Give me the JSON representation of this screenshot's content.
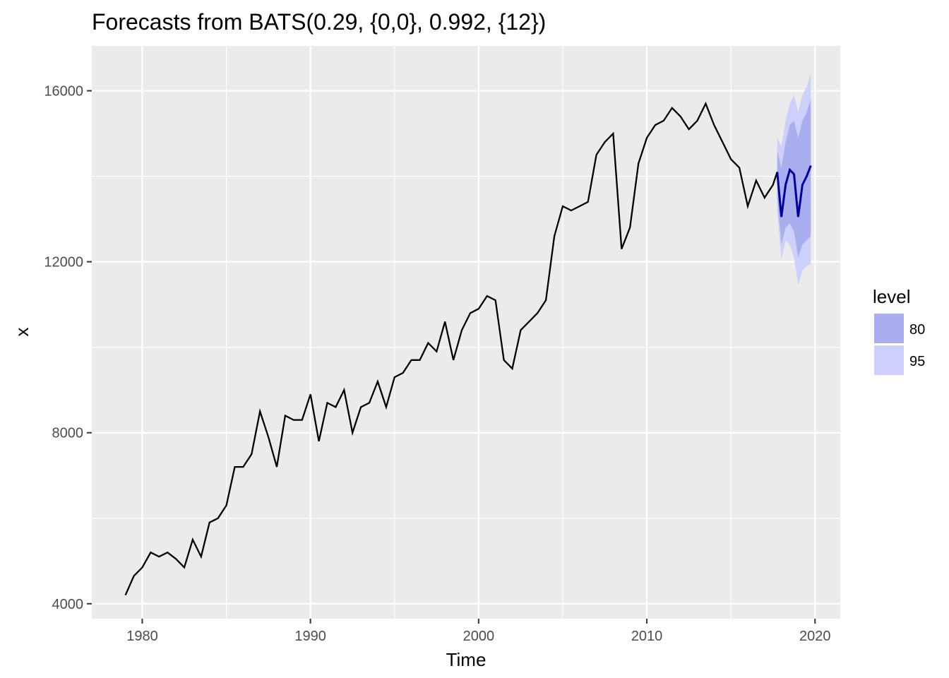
{
  "chart_data": {
    "type": "line",
    "title": "Forecasts from BATS(0.29, {0,0}, 0.992, {12})",
    "xlabel": "Time",
    "ylabel": "x",
    "xlim": [
      1977,
      2021.5
    ],
    "ylim": [
      3650,
      17050
    ],
    "x_ticks": [
      1980,
      1990,
      2000,
      2010,
      2020
    ],
    "y_ticks": [
      4000,
      8000,
      12000,
      16000
    ],
    "grid": true,
    "legend": {
      "title": "level",
      "placement": "right",
      "entries": [
        {
          "label": "80",
          "color": "#aaaeee"
        },
        {
          "label": "95",
          "color": "#ccd0fa"
        }
      ]
    },
    "colors": {
      "panel": "#ebebeb",
      "grid": "#ffffff",
      "history": "#000000",
      "forecast": "#00009e",
      "band80": "#aaaeee",
      "band95": "#ccd0fa"
    },
    "history": {
      "x": [
        1979.0,
        1979.5,
        1980.0,
        1980.5,
        1981.0,
        1981.5,
        1982.0,
        1982.5,
        1983.0,
        1983.5,
        1984.0,
        1984.5,
        1985.0,
        1985.5,
        1986.0,
        1986.5,
        1987.0,
        1987.5,
        1988.0,
        1988.5,
        1989.0,
        1989.5,
        1990.0,
        1990.5,
        1991.0,
        1991.5,
        1992.0,
        1992.5,
        1993.0,
        1993.5,
        1994.0,
        1994.5,
        1995.0,
        1995.5,
        1996.0,
        1996.5,
        1997.0,
        1997.5,
        1998.0,
        1998.5,
        1999.0,
        1999.5,
        2000.0,
        2000.5,
        2001.0,
        2001.5,
        2002.0,
        2002.5,
        2003.0,
        2003.5,
        2004.0,
        2004.5,
        2005.0,
        2005.5,
        2006.0,
        2006.5,
        2007.0,
        2007.5,
        2008.0,
        2008.5,
        2009.0,
        2009.5,
        2010.0,
        2010.5,
        2011.0,
        2011.5,
        2012.0,
        2012.5,
        2013.0,
        2013.5,
        2014.0,
        2014.5,
        2015.0,
        2015.5,
        2016.0,
        2016.5,
        2017.0,
        2017.5,
        2017.75
      ],
      "y": [
        4200,
        4650,
        4850,
        5200,
        5100,
        5200,
        5050,
        4850,
        5500,
        5100,
        5900,
        6000,
        6300,
        7200,
        7200,
        7500,
        8500,
        7900,
        7200,
        8400,
        8300,
        8300,
        8900,
        7800,
        8700,
        8600,
        9000,
        8000,
        8600,
        8700,
        9200,
        8600,
        9300,
        9400,
        9700,
        9700,
        10100,
        9900,
        10600,
        9700,
        10400,
        10800,
        10900,
        11200,
        11100,
        9700,
        9500,
        10400,
        10600,
        10800,
        11100,
        12600,
        13300,
        13200,
        13300,
        13400,
        14500,
        14800,
        15000,
        12300,
        12800,
        14300,
        14900,
        15200,
        15300,
        15600,
        15400,
        15100,
        15300,
        15700,
        15200,
        14800,
        14400,
        14200,
        13300,
        13900,
        13500,
        13800,
        14100
      ]
    },
    "forecast": {
      "x": [
        2017.75,
        2018.0,
        2018.25,
        2018.5,
        2018.75,
        2019.0,
        2019.25,
        2019.5,
        2019.75
      ],
      "y": [
        14100,
        13050,
        13800,
        14150,
        14050,
        13050,
        13800,
        14000,
        14250
      ],
      "lo80": [
        13500,
        12400,
        12800,
        12900,
        12700,
        12100,
        12400,
        12500,
        12600
      ],
      "hi80": [
        14600,
        14200,
        14800,
        15200,
        15300,
        14900,
        15300,
        15500,
        15800
      ],
      "lo95": [
        13200,
        12050,
        12500,
        12400,
        12100,
        11450,
        11800,
        11900,
        11950
      ],
      "hi95": [
        14900,
        14700,
        15300,
        15700,
        15900,
        15500,
        15900,
        16100,
        16400
      ]
    }
  }
}
